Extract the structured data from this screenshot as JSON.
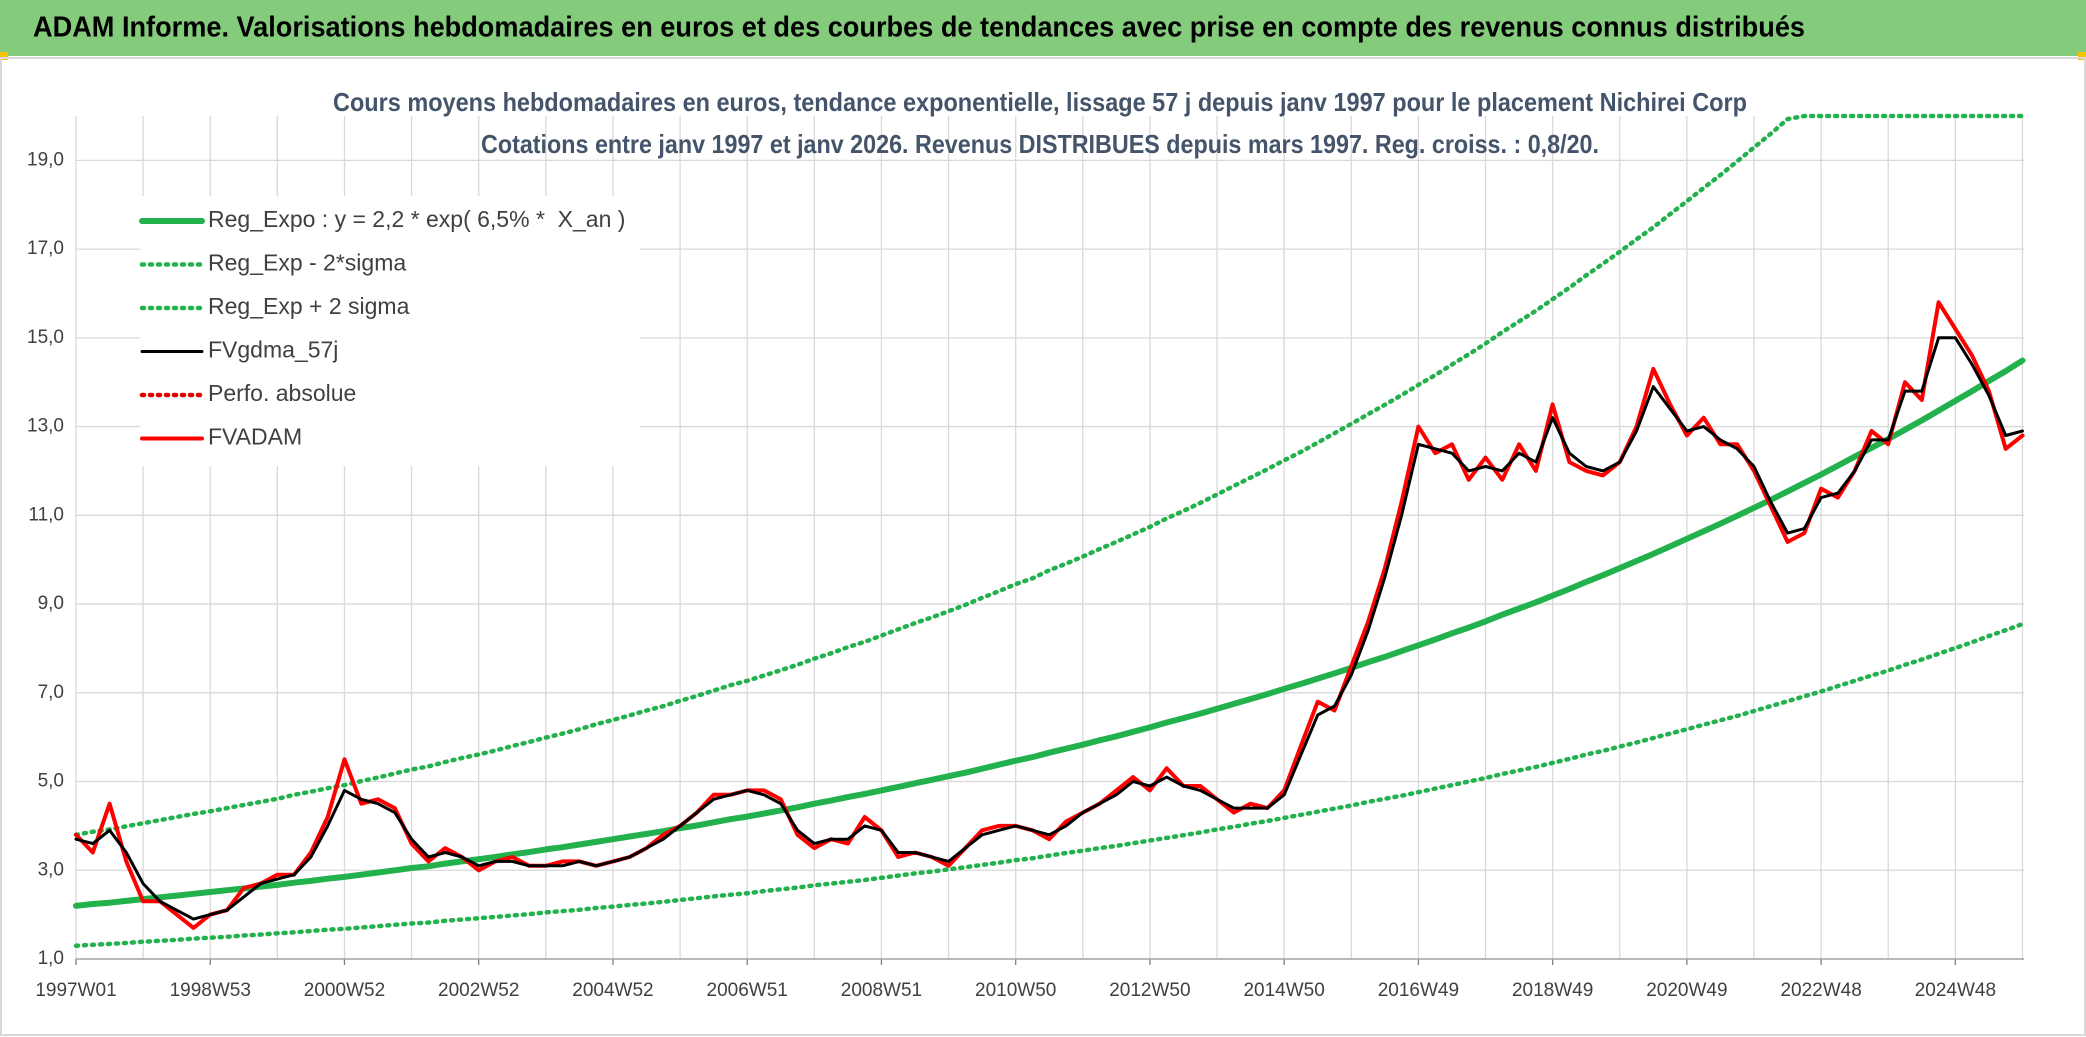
{
  "header": {
    "title": "ADAM Informe. Valorisations hebdomadaires en euros et des courbes de tendances avec prise en compte des revenus connus distribués"
  },
  "chart_data": {
    "type": "line",
    "subtitle": [
      "Cours moyens hebdomadaires en euros, tendance exponentielle, lissage 57 j depuis janv 1997 pour le placement Nichirei Corp",
      "Cotations entre janv 1997 et janv 2026. Revenus DISTRIBUES depuis mars 1997. Reg. croiss. : 0,8/20."
    ],
    "categories": [
      "1997W01",
      null,
      null,
      null,
      null,
      null,
      null,
      null,
      "1998W53",
      null,
      null,
      null,
      null,
      null,
      null,
      null,
      "2000W52",
      null,
      null,
      null,
      null,
      null,
      null,
      null,
      "2002W52",
      null,
      null,
      null,
      null,
      null,
      null,
      null,
      "2004W52",
      null,
      null,
      null,
      null,
      null,
      null,
      null,
      "2006W51",
      null,
      null,
      null,
      null,
      null,
      null,
      null,
      "2008W51",
      null,
      null,
      null,
      null,
      null,
      null,
      null,
      "2010W50",
      null,
      null,
      null,
      null,
      null,
      null,
      null,
      "2012W50",
      null,
      null,
      null,
      null,
      null,
      null,
      null,
      "2014W50",
      null,
      null,
      null,
      null,
      null,
      null,
      null,
      "2016W49",
      null,
      null,
      null,
      null,
      null,
      null,
      null,
      "2018W49",
      null,
      null,
      null,
      null,
      null,
      null,
      null,
      "2020W49",
      null,
      null,
      null,
      null,
      null,
      null,
      null,
      "2022W48",
      null,
      null,
      null,
      null,
      null,
      null,
      null,
      "2024W48",
      null,
      null,
      null,
      null
    ],
    "ylim": [
      1,
      20
    ],
    "yticks": [
      {
        "value": 1,
        "label": "1,0"
      },
      {
        "value": 3,
        "label": "3,0"
      },
      {
        "value": 5,
        "label": "5,0"
      },
      {
        "value": 7,
        "label": "7,0"
      },
      {
        "value": 9,
        "label": "9,0"
      },
      {
        "value": 11,
        "label": "11,0"
      },
      {
        "value": 13,
        "label": "13,0"
      },
      {
        "value": 15,
        "label": "15,0"
      },
      {
        "value": 17,
        "label": "17,0"
      },
      {
        "value": 19,
        "label": "19,0"
      }
    ],
    "grid": true,
    "legend": "top-left",
    "series": [
      {
        "name": "Reg_Expo : y = 2,2 * exp( 6,5% *  X_an )",
        "color": "#22b14c",
        "style": "solid",
        "values": [
          2.2,
          2.24,
          2.27,
          2.31,
          2.35,
          2.39,
          2.43,
          2.47,
          2.51,
          2.55,
          2.59,
          2.63,
          2.67,
          2.72,
          2.76,
          2.81,
          2.85,
          2.9,
          2.95,
          3.0,
          3.05,
          3.09,
          3.15,
          3.2,
          3.25,
          3.3,
          3.36,
          3.41,
          3.47,
          3.52,
          3.58,
          3.64,
          3.7,
          3.76,
          3.82,
          3.88,
          3.95,
          4.01,
          4.08,
          4.15,
          4.21,
          4.28,
          4.35,
          4.42,
          4.5,
          4.57,
          4.65,
          4.72,
          4.8,
          4.88,
          4.96,
          5.04,
          5.12,
          5.2,
          5.29,
          5.38,
          5.47,
          5.55,
          5.65,
          5.74,
          5.83,
          5.93,
          6.02,
          6.12,
          6.22,
          6.33,
          6.43,
          6.53,
          6.64,
          6.75,
          6.86,
          6.97,
          7.09,
          7.2,
          7.32,
          7.44,
          7.56,
          7.69,
          7.81,
          7.94,
          8.07,
          8.2,
          8.34,
          8.47,
          8.61,
          8.76,
          8.9,
          9.04,
          9.19,
          9.34,
          9.5,
          9.65,
          9.81,
          9.97,
          10.13,
          10.3,
          10.47,
          10.64,
          10.81,
          10.99,
          11.17,
          11.35,
          11.54,
          11.73,
          11.92,
          12.12,
          12.32,
          12.52,
          12.72,
          12.93,
          13.14,
          13.36,
          13.58,
          13.8,
          14.03,
          14.25,
          14.49
        ]
      },
      {
        "name": "Reg_Exp - 2*sigma",
        "color": "#22b14c",
        "style": "dotted",
        "values": [
          1.3,
          1.32,
          1.34,
          1.36,
          1.39,
          1.41,
          1.43,
          1.46,
          1.48,
          1.5,
          1.53,
          1.55,
          1.58,
          1.6,
          1.63,
          1.66,
          1.68,
          1.71,
          1.74,
          1.77,
          1.8,
          1.82,
          1.86,
          1.89,
          1.92,
          1.95,
          1.98,
          2.01,
          2.05,
          2.08,
          2.11,
          2.15,
          2.18,
          2.22,
          2.25,
          2.29,
          2.33,
          2.37,
          2.41,
          2.45,
          2.48,
          2.53,
          2.57,
          2.61,
          2.66,
          2.7,
          2.74,
          2.78,
          2.83,
          2.88,
          2.93,
          2.97,
          3.02,
          3.07,
          3.12,
          3.17,
          3.23,
          3.27,
          3.33,
          3.39,
          3.44,
          3.5,
          3.55,
          3.61,
          3.67,
          3.73,
          3.79,
          3.85,
          3.92,
          3.98,
          4.05,
          4.11,
          4.18,
          4.25,
          4.32,
          4.39,
          4.46,
          4.54,
          4.61,
          4.68,
          4.76,
          4.84,
          4.92,
          5.0,
          5.08,
          5.17,
          5.25,
          5.33,
          5.42,
          5.51,
          5.61,
          5.69,
          5.79,
          5.88,
          5.98,
          6.08,
          6.18,
          6.28,
          6.38,
          6.48,
          6.59,
          6.7,
          6.81,
          6.92,
          7.03,
          7.15,
          7.27,
          7.39,
          7.5,
          7.63,
          7.75,
          7.88,
          8.01,
          8.14,
          8.28,
          8.41,
          8.55
        ]
      },
      {
        "name": "Reg_Exp + 2 sigma",
        "color": "#22b14c",
        "style": "dotted",
        "values": [
          3.8,
          3.87,
          3.92,
          3.99,
          4.06,
          4.13,
          4.2,
          4.27,
          4.33,
          4.4,
          4.47,
          4.54,
          4.61,
          4.7,
          4.77,
          4.85,
          4.92,
          5.01,
          5.09,
          5.18,
          5.27,
          5.34,
          5.44,
          5.53,
          5.61,
          5.7,
          5.8,
          5.89,
          5.99,
          6.08,
          6.18,
          6.29,
          6.39,
          6.49,
          6.6,
          6.7,
          6.82,
          6.93,
          7.05,
          7.17,
          7.27,
          7.39,
          7.51,
          7.63,
          7.77,
          7.89,
          8.03,
          8.15,
          8.29,
          8.43,
          8.57,
          8.7,
          8.84,
          8.98,
          9.14,
          9.29,
          9.45,
          9.58,
          9.76,
          9.91,
          10.07,
          10.24,
          10.4,
          10.57,
          10.74,
          10.93,
          11.1,
          11.28,
          11.47,
          11.66,
          11.85,
          12.04,
          12.24,
          12.43,
          12.64,
          12.85,
          13.06,
          13.28,
          13.49,
          13.71,
          13.94,
          14.16,
          14.4,
          14.63,
          14.87,
          15.13,
          15.37,
          15.61,
          15.87,
          16.13,
          16.41,
          16.67,
          16.94,
          17.22,
          17.49,
          17.79,
          18.08,
          18.38,
          18.67,
          18.98,
          19.29,
          19.6,
          19.93,
          20,
          20,
          20,
          20,
          20,
          20,
          20,
          20,
          20,
          20,
          20,
          20,
          20,
          20
        ]
      },
      {
        "name": "FVgdma_57j",
        "color": "#000000",
        "style": "solid",
        "values": [
          3.7,
          3.6,
          3.9,
          3.4,
          2.7,
          2.3,
          2.1,
          1.9,
          2.0,
          2.1,
          2.4,
          2.7,
          2.8,
          2.9,
          3.3,
          4.0,
          4.8,
          4.6,
          4.5,
          4.3,
          3.7,
          3.3,
          3.4,
          3.3,
          3.1,
          3.2,
          3.2,
          3.1,
          3.1,
          3.1,
          3.2,
          3.1,
          3.2,
          3.3,
          3.5,
          3.7,
          4.0,
          4.3,
          4.6,
          4.7,
          4.8,
          4.7,
          4.5,
          3.9,
          3.6,
          3.7,
          3.7,
          4.0,
          3.9,
          3.4,
          3.4,
          3.3,
          3.2,
          3.5,
          3.8,
          3.9,
          4.0,
          3.9,
          3.8,
          4.0,
          4.3,
          4.5,
          4.7,
          5.0,
          4.9,
          5.1,
          4.9,
          4.8,
          4.6,
          4.4,
          4.4,
          4.4,
          4.7,
          5.6,
          6.5,
          6.7,
          7.4,
          8.4,
          9.6,
          11.0,
          12.6,
          12.5,
          12.4,
          12.0,
          12.1,
          12.0,
          12.4,
          12.2,
          13.2,
          12.4,
          12.1,
          12.0,
          12.2,
          12.9,
          13.9,
          13.4,
          12.9,
          13.0,
          12.7,
          12.5,
          12.1,
          11.3,
          10.6,
          10.7,
          11.4,
          11.5,
          12.0,
          12.7,
          12.7,
          13.8,
          13.8,
          15.0,
          15.0,
          14.4,
          13.7,
          12.8,
          12.9
        ]
      },
      {
        "name": "Perfo. absolue",
        "color": "#e00000",
        "style": "dotted",
        "values": [
          null,
          null,
          null,
          null,
          null,
          null,
          null,
          null,
          null,
          null,
          null,
          null,
          null,
          null,
          null,
          null,
          null,
          null,
          null,
          null,
          null,
          null,
          null,
          null,
          null,
          null,
          null,
          null,
          null,
          null,
          null,
          null,
          null,
          null,
          null,
          null,
          null,
          null,
          null,
          null,
          null,
          null,
          null,
          null,
          null,
          null,
          null,
          null,
          null,
          null,
          null,
          null,
          null,
          null,
          null,
          null,
          null,
          null,
          null,
          null,
          null,
          null,
          null,
          null,
          null,
          null,
          null,
          null,
          null,
          null,
          null,
          null,
          null,
          null,
          null,
          null,
          null,
          null,
          null,
          null,
          null,
          null,
          null,
          null,
          null,
          null,
          null,
          null,
          null,
          null,
          null,
          null,
          null,
          null,
          null,
          null,
          null,
          null,
          null,
          null,
          null,
          null,
          null,
          null,
          null,
          null,
          null,
          null,
          null,
          null,
          null,
          null,
          null,
          null,
          null,
          null,
          null
        ]
      },
      {
        "name": "FVADAM",
        "color": "#ff0000",
        "style": "solid",
        "values": [
          3.8,
          3.4,
          4.5,
          3.2,
          2.3,
          2.3,
          2.0,
          1.7,
          2.0,
          2.1,
          2.6,
          2.7,
          2.9,
          2.9,
          3.4,
          4.2,
          5.5,
          4.5,
          4.6,
          4.4,
          3.6,
          3.2,
          3.5,
          3.3,
          3.0,
          3.2,
          3.3,
          3.1,
          3.1,
          3.2,
          3.2,
          3.1,
          3.2,
          3.3,
          3.5,
          3.8,
          4.0,
          4.3,
          4.7,
          4.7,
          4.8,
          4.8,
          4.6,
          3.8,
          3.5,
          3.7,
          3.6,
          4.2,
          3.9,
          3.3,
          3.4,
          3.3,
          3.1,
          3.5,
          3.9,
          4.0,
          4.0,
          3.9,
          3.7,
          4.1,
          4.3,
          4.5,
          4.8,
          5.1,
          4.8,
          5.3,
          4.9,
          4.9,
          4.6,
          4.3,
          4.5,
          4.4,
          4.8,
          5.8,
          6.8,
          6.6,
          7.6,
          8.6,
          9.8,
          11.3,
          13.0,
          12.4,
          12.6,
          11.8,
          12.3,
          11.8,
          12.6,
          12.0,
          13.5,
          12.2,
          12.0,
          11.9,
          12.2,
          13.0,
          14.3,
          13.5,
          12.8,
          13.2,
          12.6,
          12.6,
          12.0,
          11.2,
          10.4,
          10.6,
          11.6,
          11.4,
          12.0,
          12.9,
          12.6,
          14.0,
          13.6,
          15.8,
          15.2,
          14.6,
          13.8,
          12.5,
          12.8
        ]
      }
    ]
  }
}
